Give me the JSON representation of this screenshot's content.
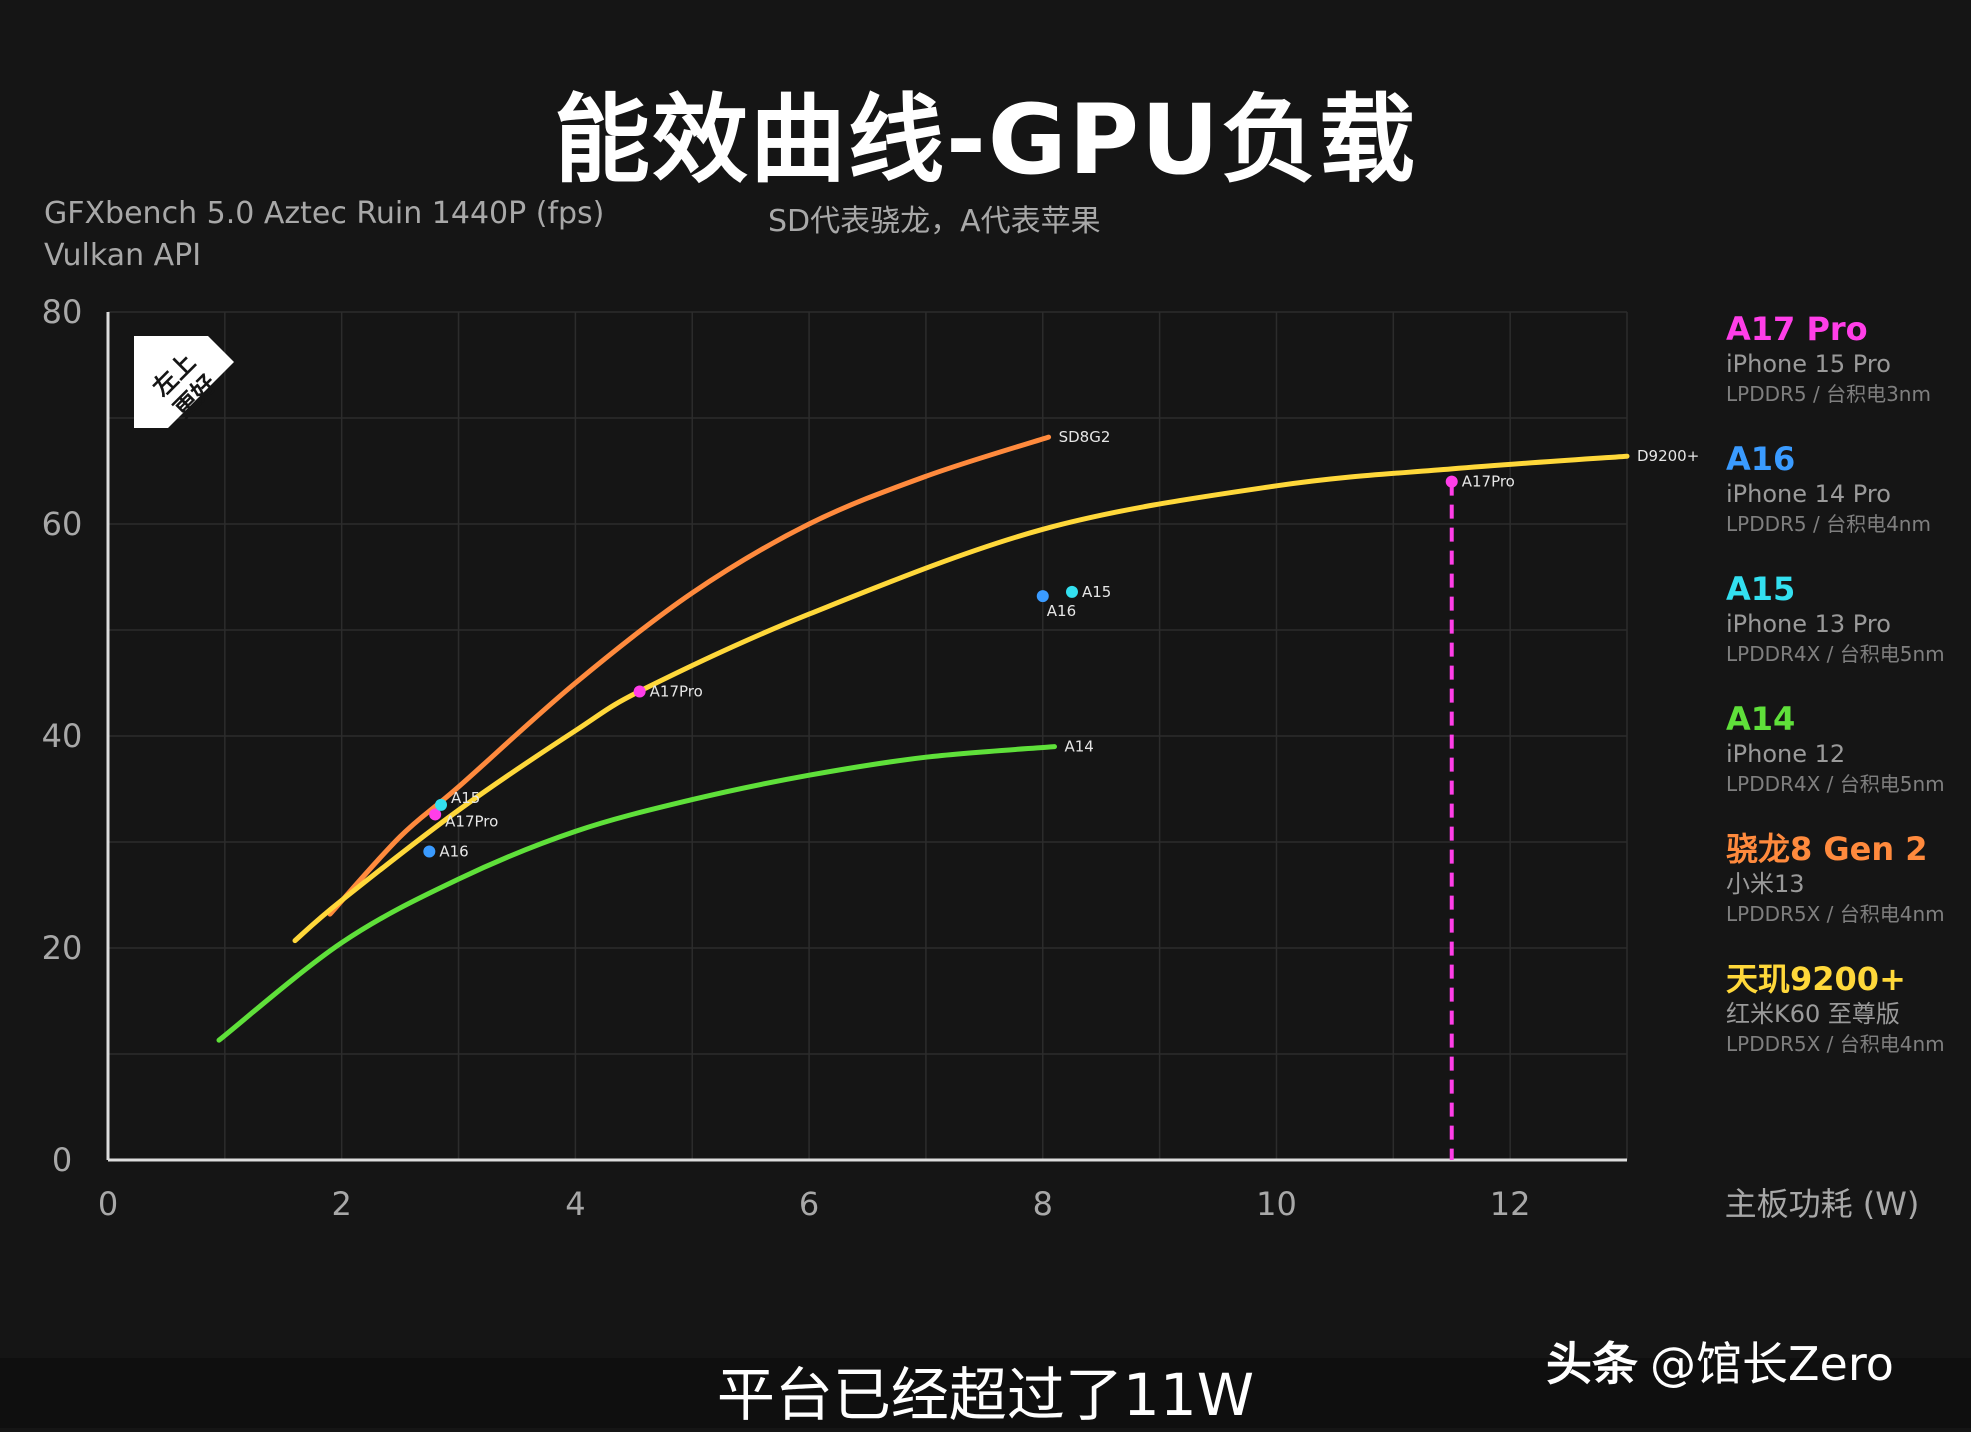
{
  "title": "能效曲线-GPU负载",
  "subtitle_line1": "GFXbench 5.0 Aztec Ruin 1440P (fps)",
  "subtitle_line2": "Vulkan API",
  "note": "SD代表骁龙，A代表苹果",
  "badge_text": [
    "左上",
    "更好"
  ],
  "legend": [
    {
      "chip": "A17 Pro",
      "device": "iPhone 15 Pro",
      "spec": "LPDDR5 / 台积电3nm",
      "color": "#ff3ee8"
    },
    {
      "chip": "A16",
      "device": "iPhone 14 Pro",
      "spec": "LPDDR5 / 台积电4nm",
      "color": "#3a9bff"
    },
    {
      "chip": "A15",
      "device": "iPhone 13 Pro",
      "spec": "LPDDR4X / 台积电5nm",
      "color": "#33e0f0"
    },
    {
      "chip": "A14",
      "device": "iPhone 12",
      "spec": "LPDDR4X / 台积电5nm",
      "color": "#5fe03a"
    },
    {
      "chip": "骁龙8 Gen 2",
      "device": "小米13",
      "spec": "LPDDR5X / 台积电4nm",
      "color": "#ff8a3d"
    },
    {
      "chip": "天玑9200+",
      "device": "红米K60 至尊版",
      "spec": "LPDDR5X / 台积电4nm",
      "color": "#ffd83a"
    }
  ],
  "caption": "平台已经超过了11W",
  "watermark_brand": "头条",
  "watermark_user": "@馆长Zero",
  "chart_data": {
    "type": "line",
    "xlabel": "主板功耗 (W)",
    "ylabel": "",
    "xlim": [
      0,
      13
    ],
    "ylim": [
      0,
      80
    ],
    "xticks": [
      0,
      2,
      4,
      6,
      8,
      10,
      12
    ],
    "yticks": [
      0,
      20,
      40,
      60,
      80
    ],
    "grid": true,
    "series": [
      {
        "name": "SD8G2",
        "color": "#ff8a3d",
        "points": [
          [
            1.9,
            23.2
          ],
          [
            2.5,
            30.5
          ],
          [
            3.0,
            35.2
          ],
          [
            4.0,
            45.0
          ],
          [
            5.0,
            53.5
          ],
          [
            6.0,
            60.0
          ],
          [
            7.0,
            64.5
          ],
          [
            8.05,
            68.2
          ]
        ]
      },
      {
        "name": "D9200+",
        "color": "#ffd83a",
        "points": [
          [
            1.6,
            20.7
          ],
          [
            2.0,
            24.5
          ],
          [
            3.0,
            33.0
          ],
          [
            4.0,
            40.5
          ],
          [
            4.6,
            44.5
          ],
          [
            6.0,
            51.5
          ],
          [
            8.0,
            59.5
          ],
          [
            10.0,
            63.6
          ],
          [
            11.5,
            65.2
          ],
          [
            13.0,
            66.4
          ]
        ]
      },
      {
        "name": "A14",
        "color": "#5fe03a",
        "points": [
          [
            0.95,
            11.3
          ],
          [
            2.0,
            20.5
          ],
          [
            3.0,
            26.5
          ],
          [
            4.0,
            31.0
          ],
          [
            5.0,
            34.0
          ],
          [
            6.0,
            36.3
          ],
          [
            7.0,
            38.0
          ],
          [
            8.1,
            39.0
          ]
        ]
      }
    ],
    "points": [
      {
        "label": "A17Pro",
        "x": 11.5,
        "y": 64.0,
        "color": "#ff3ee8"
      },
      {
        "label": "A17Pro",
        "x": 4.55,
        "y": 44.2,
        "color": "#ff3ee8"
      },
      {
        "label": "A17Pro",
        "x": 2.8,
        "y": 32.6,
        "color": "#ff3ee8"
      },
      {
        "label": "A15",
        "x": 2.85,
        "y": 33.5,
        "color": "#33e0f0"
      },
      {
        "label": "A16",
        "x": 2.75,
        "y": 29.1,
        "color": "#3a9bff"
      },
      {
        "label": "A15",
        "x": 8.25,
        "y": 53.6,
        "color": "#33e0f0"
      },
      {
        "label": "A16",
        "x": 8.0,
        "y": 53.2,
        "color": "#3a9bff"
      }
    ],
    "vline": {
      "x": 11.5,
      "y_top": 64.0,
      "color": "#ff3ee8"
    }
  }
}
